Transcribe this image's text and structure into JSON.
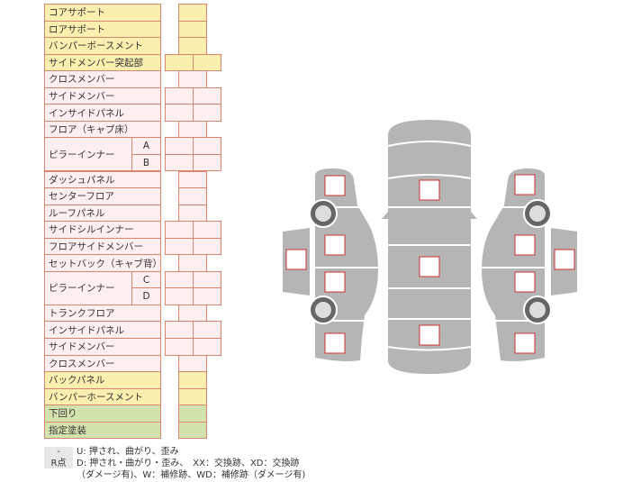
{
  "rows": [
    {
      "label": "コアサポート",
      "color": "y",
      "cells": 1
    },
    {
      "label": "ロアサポート",
      "color": "y",
      "cells": 1
    },
    {
      "label": "バンパーボースメント",
      "color": "y",
      "cells": 1
    },
    {
      "label": "サイドメンバー突起部",
      "color": "y",
      "cells": 2
    },
    {
      "label": "クロスメンバー",
      "color": "p",
      "cells": 1
    },
    {
      "label": "サイドメンバー",
      "color": "p",
      "cells": 2
    },
    {
      "label": "インサイドパネル",
      "color": "p",
      "cells": 2
    },
    {
      "label": "フロア（キャブ床）",
      "color": "p",
      "cells": 1
    },
    {
      "label": "ピラーインナー",
      "color": "p",
      "cells": 2,
      "sub": "A"
    },
    {
      "label": "",
      "color": "p",
      "cells": 2,
      "sub": "B"
    },
    {
      "label": "ダッシュパネル",
      "color": "p",
      "cells": 1
    },
    {
      "label": "センターフロア",
      "color": "p",
      "cells": 1
    },
    {
      "label": "ルーフパネル",
      "color": "p",
      "cells": 1
    },
    {
      "label": "サイドシルインナー",
      "color": "p",
      "cells": 2
    },
    {
      "label": "フロアサイドメンバー",
      "color": "p",
      "cells": 2
    },
    {
      "label": "セットバック（キャブ背）",
      "color": "p",
      "cells": 1
    },
    {
      "label": "ピラーインナー",
      "color": "p",
      "cells": 2,
      "sub": "C"
    },
    {
      "label": "",
      "color": "p",
      "cells": 2,
      "sub": "D"
    },
    {
      "label": "トランクフロア",
      "color": "p",
      "cells": 1
    },
    {
      "label": "インサイドパネル",
      "color": "p",
      "cells": 2
    },
    {
      "label": "サイドメンバー",
      "color": "p",
      "cells": 2
    },
    {
      "label": "クロスメンバー",
      "color": "p",
      "cells": 1
    },
    {
      "label": "バックパネル",
      "color": "y",
      "cells": 1
    },
    {
      "label": "バンパーホースメント",
      "color": "y",
      "cells": 1
    },
    {
      "label": "下回り",
      "color": "g",
      "cells": 1
    },
    {
      "label": "指定塗装",
      "color": "g",
      "cells": 1
    }
  ],
  "legend": [
    {
      "key": "-",
      "text": "U: 押され、曲がり、歪み"
    },
    {
      "key": "R点",
      "text": "D: 押され・曲がり・歪み、　XX：交換跡、XD：交換跡"
    },
    {
      "key": "",
      "text": "（ダメージ有)、W：補修跡、WD：補修跡（ダメージ有)"
    }
  ],
  "colors": {
    "yellow": "#fbefb0",
    "pink": "#fdeef0",
    "green": "#d3e3ad",
    "border": "#d9866f",
    "body": "#b5b5b5",
    "marker": "#cc3333"
  }
}
